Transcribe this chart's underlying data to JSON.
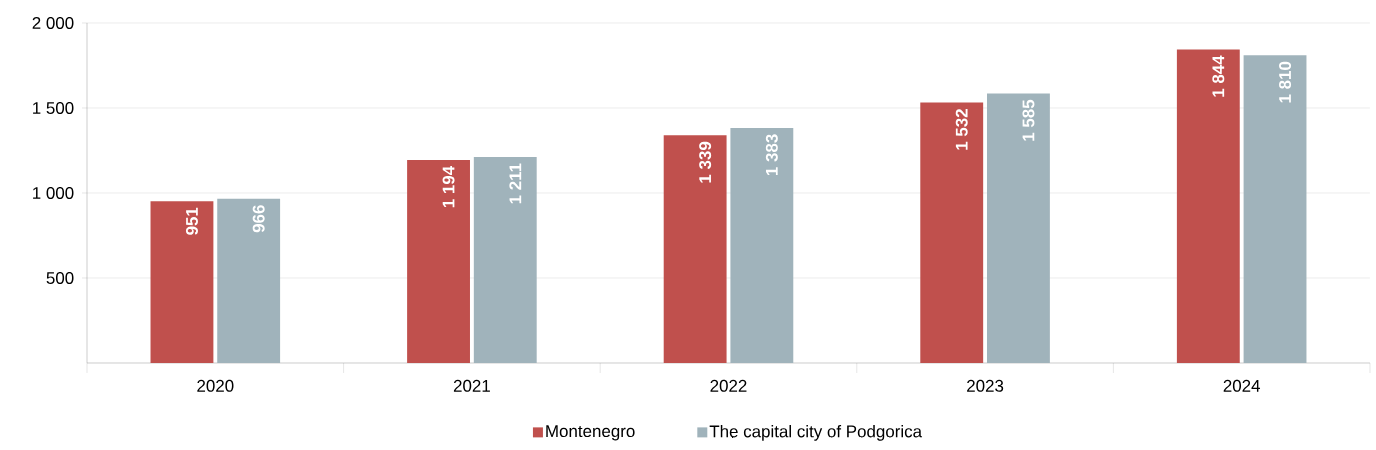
{
  "chart_data": {
    "type": "bar",
    "categories": [
      "2020",
      "2021",
      "2022",
      "2023",
      "2024"
    ],
    "series": [
      {
        "name": "Montenegro",
        "color": "#c0504d",
        "values": [
          951,
          1194,
          1339,
          1532,
          1844
        ],
        "value_labels": [
          "951",
          "1 194",
          "1 339",
          "1 532",
          "1 844"
        ]
      },
      {
        "name": "The capital city of Podgorica",
        "color": "#a0b3bb",
        "values": [
          966,
          1211,
          1383,
          1585,
          1810
        ],
        "value_labels": [
          "966",
          "1 211",
          "1 383",
          "1 585",
          "1 810"
        ]
      }
    ],
    "ylim": [
      0,
      2000
    ],
    "yticks": [
      500,
      {
        "value": 1000,
        "label": "1 000"
      },
      {
        "value": 1500,
        "label": "1 500"
      },
      {
        "value": 2000,
        "label": "2 000"
      }
    ],
    "grid": "y",
    "legend": "bottom"
  }
}
